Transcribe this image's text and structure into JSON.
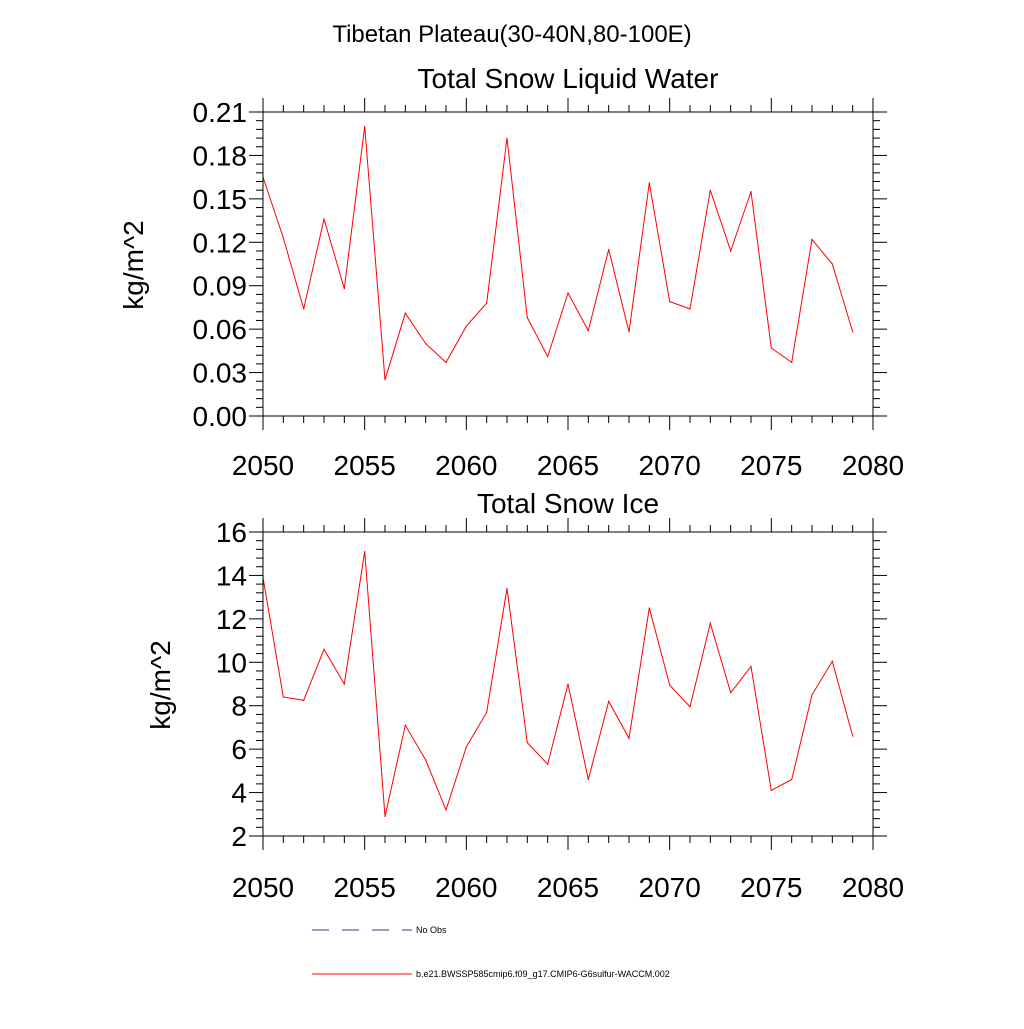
{
  "page_title": "Tibetan Plateau(30-40N,80-100E)",
  "colors": {
    "model_line": "#ff0000",
    "obs_line": "#3a3a8a",
    "axis": "#000000"
  },
  "legend": {
    "obs_label": "No Obs",
    "model_label": "b.e21.BWSSP585cmip6.f09_g17.CMIP6-G6sulfur-WACCM.002"
  },
  "chart_data": [
    {
      "type": "line",
      "title": "Total Snow Liquid Water",
      "xlabel": "",
      "ylabel": "kg/m^2",
      "xlim": [
        2050,
        2080
      ],
      "ylim": [
        0,
        0.21
      ],
      "xticks": [
        "2050",
        "2055",
        "2060",
        "2065",
        "2070",
        "2075",
        "2080"
      ],
      "yticks": [
        "0.00",
        "0.03",
        "0.06",
        "0.09",
        "0.12",
        "0.15",
        "0.18",
        "0.21"
      ],
      "grid": false,
      "x": [
        2050,
        2051,
        2052,
        2053,
        2054,
        2055,
        2056,
        2057,
        2058,
        2059,
        2060,
        2061,
        2062,
        2063,
        2064,
        2065,
        2066,
        2067,
        2068,
        2069,
        2070,
        2071,
        2072,
        2073,
        2074,
        2075,
        2076,
        2077,
        2078,
        2079
      ],
      "series": [
        {
          "values": [
            0.165,
            0.123,
            0.074,
            0.136,
            0.088,
            0.2,
            0.025,
            0.071,
            0.05,
            0.037,
            0.062,
            0.078,
            0.192,
            0.068,
            0.041,
            0.085,
            0.059,
            0.115,
            0.058,
            0.161,
            0.079,
            0.074,
            0.156,
            0.114,
            0.155,
            0.047,
            0.037,
            0.122,
            0.105,
            0.058
          ]
        }
      ]
    },
    {
      "type": "line",
      "title": "Total Snow Ice",
      "xlabel": "",
      "ylabel": "kg/m^2",
      "xlim": [
        2050,
        2080
      ],
      "ylim": [
        2,
        16
      ],
      "xticks": [
        "2050",
        "2055",
        "2060",
        "2065",
        "2070",
        "2075",
        "2080"
      ],
      "yticks": [
        "2",
        "4",
        "6",
        "8",
        "10",
        "12",
        "14",
        "16"
      ],
      "grid": false,
      "x": [
        2050,
        2051,
        2052,
        2053,
        2054,
        2055,
        2056,
        2057,
        2058,
        2059,
        2060,
        2061,
        2062,
        2063,
        2064,
        2065,
        2066,
        2067,
        2068,
        2069,
        2070,
        2071,
        2072,
        2073,
        2074,
        2075,
        2076,
        2077,
        2078,
        2079
      ],
      "series": [
        {
          "values": [
            13.9,
            8.4,
            8.25,
            10.6,
            9.0,
            15.1,
            2.9,
            7.1,
            5.5,
            3.2,
            6.1,
            7.7,
            13.4,
            6.3,
            5.3,
            9.0,
            4.6,
            8.2,
            6.5,
            12.5,
            8.95,
            7.95,
            11.8,
            8.6,
            9.8,
            4.1,
            4.6,
            8.5,
            10.05,
            6.6
          ]
        }
      ]
    }
  ]
}
